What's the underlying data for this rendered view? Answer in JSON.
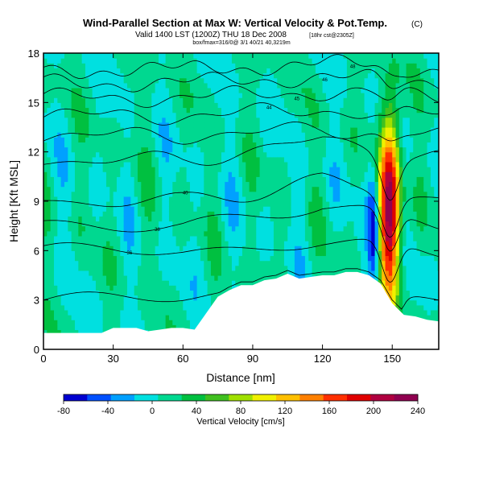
{
  "header": {
    "title": "Wind-Parallel Section at Max W: Vertical Velocity & Pot.Temp.",
    "title_mark": "(C)",
    "valid_line": "Valid 1400 LST (1200Z) THU 18 Dec 2008",
    "valid_note": "[18hr cst@2305Z]",
    "tiny_line": "box/fmax=316/0@ 3/1 40/21 40,3219m"
  },
  "chart_data": {
    "type": "heatmap",
    "xlabel": "Distance [nm]",
    "ylabel": "Height [Kft MSL]",
    "xlim": [
      0,
      170
    ],
    "ylim": [
      0,
      18
    ],
    "xticks": [
      0,
      30,
      60,
      90,
      120,
      150
    ],
    "yticks": [
      0,
      3,
      6,
      9,
      12,
      15,
      18
    ],
    "colorbar": {
      "label": "Vertical Velocity [cm/s]",
      "tick_labels": [
        "-80",
        "-40",
        "0",
        "40",
        "80",
        "120",
        "160",
        "200",
        "240"
      ],
      "colors": [
        "#0000d0",
        "#0050ff",
        "#00a0ff",
        "#00e0e0",
        "#00d890",
        "#00c040",
        "#40c020",
        "#a0e000",
        "#f0f000",
        "#ffc000",
        "#ff8000",
        "#ff3000",
        "#e00000",
        "#b00040",
        "#900050"
      ]
    },
    "terrain": [
      [
        0,
        1.0
      ],
      [
        5,
        1.0
      ],
      [
        10,
        1.0
      ],
      [
        15,
        1.0
      ],
      [
        20,
        1.0
      ],
      [
        25,
        1.0
      ],
      [
        30,
        1.3
      ],
      [
        35,
        1.3
      ],
      [
        40,
        1.3
      ],
      [
        45,
        1.1
      ],
      [
        50,
        1.2
      ],
      [
        55,
        1.3
      ],
      [
        60,
        1.3
      ],
      [
        65,
        1.2
      ],
      [
        70,
        2.2
      ],
      [
        75,
        3.2
      ],
      [
        80,
        3.6
      ],
      [
        85,
        3.9
      ],
      [
        90,
        3.9
      ],
      [
        95,
        4.2
      ],
      [
        100,
        4.3
      ],
      [
        105,
        4.6
      ],
      [
        110,
        4.3
      ],
      [
        115,
        4.4
      ],
      [
        120,
        4.5
      ],
      [
        125,
        4.5
      ],
      [
        130,
        4.7
      ],
      [
        135,
        4.7
      ],
      [
        140,
        4.5
      ],
      [
        145,
        4.0
      ],
      [
        150,
        2.8
      ],
      [
        155,
        2.1
      ],
      [
        160,
        2.0
      ],
      [
        165,
        1.8
      ],
      [
        170,
        1.7
      ]
    ],
    "contours": {
      "levels": [
        {
          "base": 3.0,
          "label": ""
        },
        {
          "base": 6.0,
          "label": "36"
        },
        {
          "base": 7.5,
          "label": "38"
        },
        {
          "base": 9.0,
          "label": "40"
        },
        {
          "base": 11.5,
          "label": ""
        },
        {
          "base": 13.0,
          "label": ""
        },
        {
          "base": 14.2,
          "label": "44"
        },
        {
          "base": 15.3,
          "label": "45"
        },
        {
          "base": 16.2,
          "label": "46"
        },
        {
          "base": 17.0,
          "label": "48"
        }
      ]
    },
    "updraft": {
      "x_center": 149,
      "half_width": 4.5,
      "peak_height": 8.5,
      "peak_value": 220
    }
  }
}
